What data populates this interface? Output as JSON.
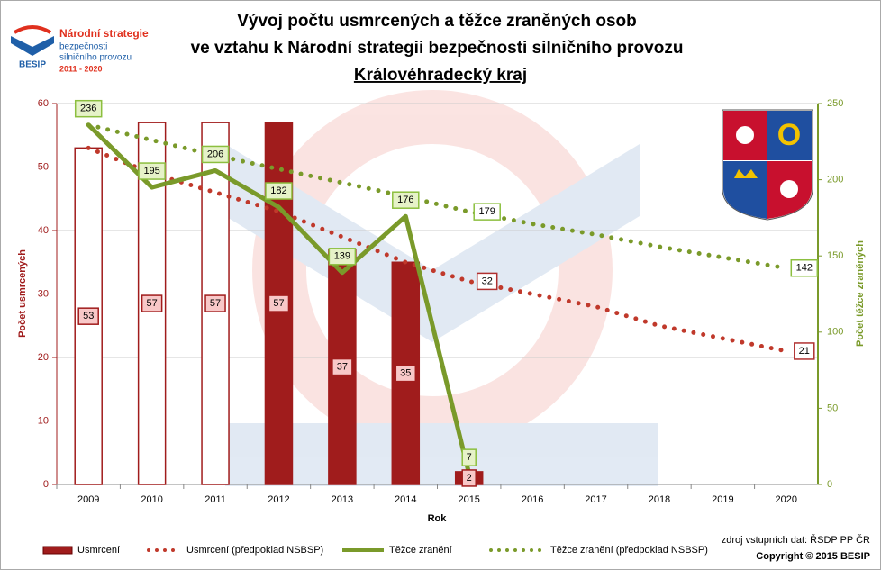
{
  "logo": {
    "lines": [
      "Národní strategie",
      "bezpečnosti",
      "silničního provozu",
      "2011 - 2020"
    ],
    "brand": "BESIP"
  },
  "chart_data": {
    "type": "combo",
    "title": [
      "Vývoj počtu usmrcených a těžce zraněných osob",
      "ve vztahu k Národní strategii bezpečnosti silničního provozu",
      "Královéhradecký kraj"
    ],
    "x_label": "Rok",
    "y_label": "Počet usmrcených",
    "y2_label": "Počet těžce zraněných",
    "categories": [
      "2009",
      "2010",
      "2011",
      "2012",
      "2013",
      "2014",
      "2015",
      "2016",
      "2017",
      "2018",
      "2019",
      "2020"
    ],
    "ylim": [
      0,
      60
    ],
    "yticks": [
      0,
      10,
      20,
      30,
      40,
      50,
      60
    ],
    "y2lim": [
      0,
      250
    ],
    "y2ticks": [
      0,
      50,
      100,
      150,
      200,
      250
    ],
    "grid": true,
    "series": [
      {
        "name": "Usmrcení",
        "type": "bar",
        "color": "#a01c1c",
        "fills": [
          "#ffffff",
          "#ffffff",
          "#ffffff",
          "#a01c1c",
          "#a01c1c",
          "#a01c1c",
          "#a01c1c",
          null,
          null,
          null,
          null,
          null
        ],
        "values": [
          53,
          57,
          57,
          57,
          37,
          35,
          2,
          null,
          null,
          null,
          null,
          null
        ]
      },
      {
        "name": "Usmrcení (předpoklad NSBSP)",
        "type": "dotted",
        "color": "#c0392b",
        "labels_at": [
          6,
          11
        ],
        "values": [
          53,
          49,
          46,
          43,
          39,
          35,
          32,
          30,
          28,
          25,
          23,
          21
        ]
      },
      {
        "name": "Těžce zranění",
        "type": "line",
        "axis": "y2",
        "color": "#7a9a2a",
        "labels_at": [
          0,
          1,
          2,
          3,
          4,
          5,
          6
        ],
        "values": [
          236,
          195,
          206,
          182,
          139,
          176,
          7,
          null,
          null,
          null,
          null,
          null
        ]
      },
      {
        "name": "Těžce zranění (předpoklad NSBSP)",
        "type": "dotted",
        "axis": "y2",
        "color": "#7a9a2a",
        "labels_at": [
          6,
          11
        ],
        "values": [
          236,
          226,
          216,
          207,
          198,
          189,
          179,
          171,
          164,
          156,
          149,
          142
        ]
      }
    ],
    "source": "zdroj vstupních dat: ŘSDP PP ČR",
    "copyright": "Copyright © 2015  BESIP"
  }
}
